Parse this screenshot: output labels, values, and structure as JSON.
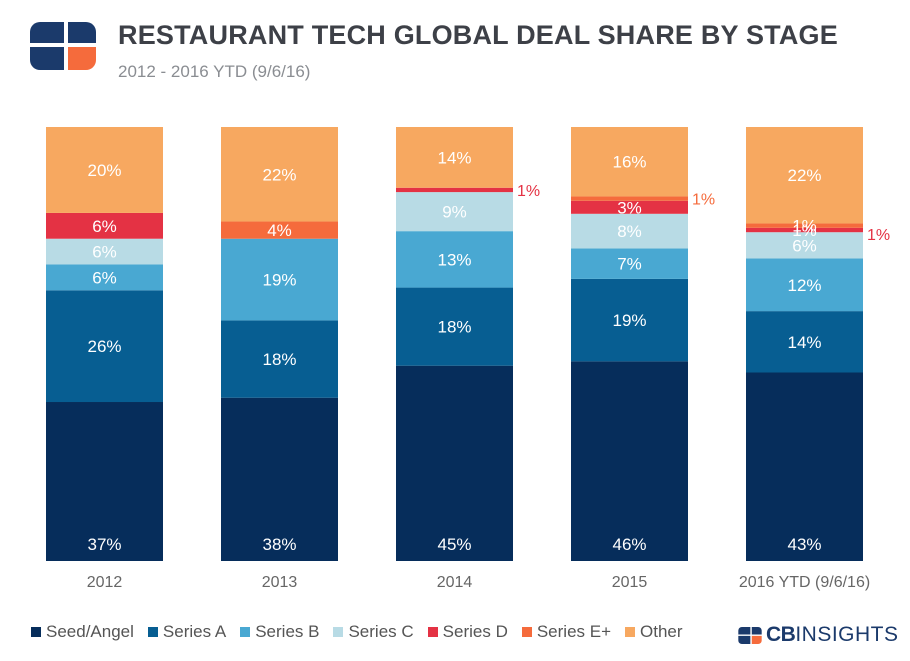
{
  "header": {
    "title": "RESTAURANT TECH GLOBAL DEAL SHARE BY STAGE",
    "subtitle": "2012 - 2016 YTD (9/6/16)"
  },
  "brand": {
    "bold": "CB",
    "rest": "INSIGHTS"
  },
  "chart_data": {
    "type": "bar",
    "stacked": true,
    "normalized": true,
    "title": "RESTAURANT TECH GLOBAL DEAL SHARE BY STAGE",
    "subtitle": "2012 - 2016 YTD (9/6/16)",
    "xlabel": "",
    "ylabel": "",
    "ylim": [
      0,
      100
    ],
    "grid": false,
    "legend_position": "bottom",
    "categories": [
      "2012",
      "2013",
      "2014",
      "2015",
      "2016 YTD (9/6/16)"
    ],
    "series": [
      {
        "name": "Seed/Angel",
        "color": "#062d5b",
        "label_color": "#ffffff",
        "values": [
          37,
          38,
          45,
          46,
          43
        ],
        "labels": [
          "37%",
          "38%",
          "45%",
          "46%",
          "43%"
        ]
      },
      {
        "name": "Series A",
        "color": "#075e92",
        "label_color": "#ffffff",
        "values": [
          26,
          18,
          18,
          19,
          14
        ],
        "labels": [
          "26%",
          "18%",
          "18%",
          "19%",
          "14%"
        ]
      },
      {
        "name": "Series B",
        "color": "#49a8d2",
        "label_color": "#ffffff",
        "values": [
          6,
          19,
          13,
          7,
          12
        ],
        "labels": [
          "6%",
          "19%",
          "13%",
          "7%",
          "12%"
        ]
      },
      {
        "name": "Series C",
        "color": "#b8dbe5",
        "label_color": "#ffffff",
        "values": [
          6,
          0,
          9,
          8,
          6
        ],
        "labels": [
          "6%",
          "",
          "9%",
          "8%",
          "6%"
        ]
      },
      {
        "name": "Series D",
        "color": "#e43244",
        "label_color": "#ffffff",
        "values": [
          6,
          0,
          1,
          3,
          1
        ],
        "labels": [
          "6%",
          "",
          "1%",
          "3%",
          "1%"
        ],
        "outside_labels": [
          false,
          false,
          true,
          false,
          false
        ]
      },
      {
        "name": "Series E+",
        "color": "#f56b3c",
        "label_color": "#ffffff",
        "values": [
          0,
          4,
          0,
          1,
          1
        ],
        "labels": [
          "",
          "4%",
          "",
          "1%",
          "1%"
        ],
        "outside_labels": [
          false,
          false,
          false,
          true,
          false
        ]
      },
      {
        "name": "Other",
        "color": "#f7a860",
        "label_color": "#ffffff",
        "values": [
          20,
          22,
          14,
          16,
          22
        ],
        "labels": [
          "20%",
          "22%",
          "14%",
          "16%",
          "22%"
        ]
      }
    ],
    "extra_labels": [
      {
        "category": "2016 YTD (9/6/16)",
        "series": "Series D",
        "text": "1%",
        "color": "#e43244"
      }
    ]
  }
}
